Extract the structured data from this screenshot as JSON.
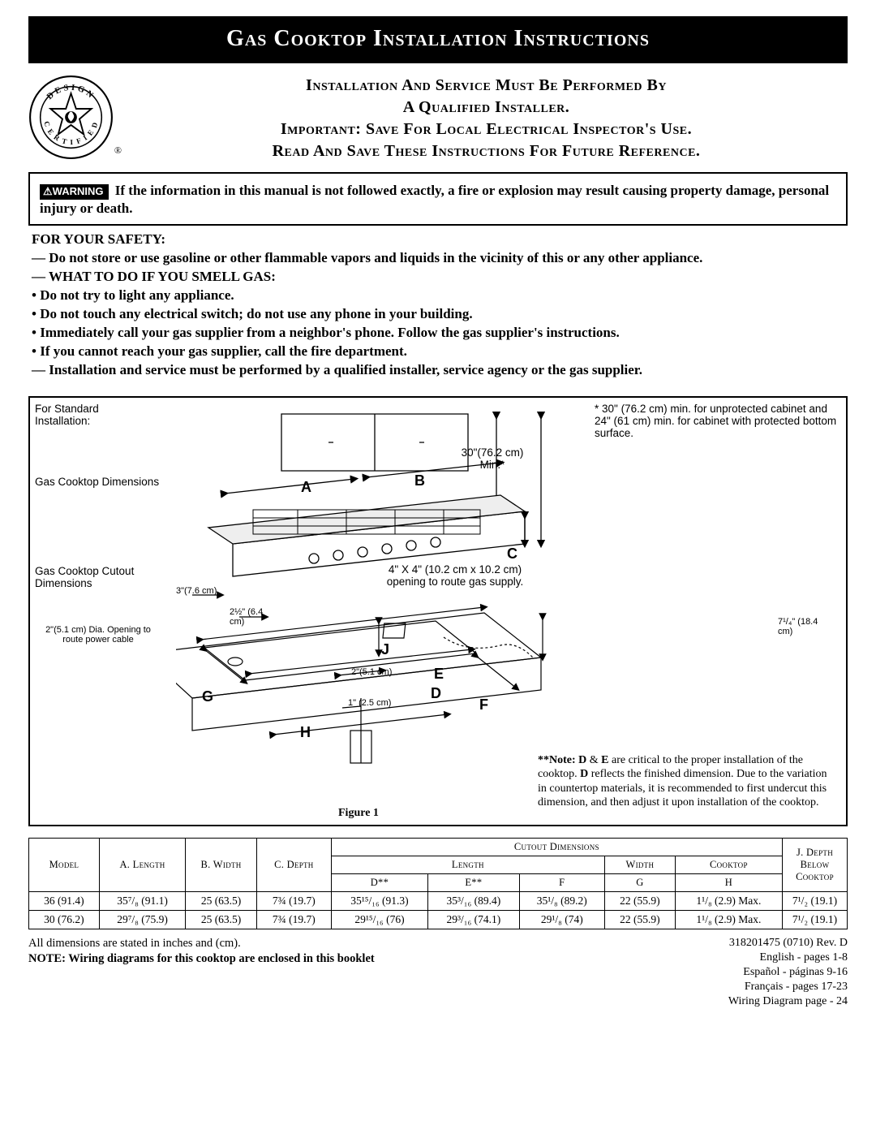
{
  "title": "Gas Cooktop Installation Instructions",
  "header_lines": [
    "Installation And Service Must Be Performed By",
    "A Qualified Installer.",
    "Important: Save For Local Electrical Inspector's Use.",
    "Read And Save These Instructions For Future Reference."
  ],
  "seal": {
    "top_text": "DESIGN",
    "bottom_text": "CERTIFIED",
    "icon": "star-flame"
  },
  "warning_label": "WARNING",
  "warning_text": "If the information in this manual is not followed exactly, a fire or explosion may result causing property damage, personal injury or death.",
  "safety_heading": "FOR YOUR SAFETY:",
  "safety_items": [
    {
      "style": "dash",
      "text": "Do not store or use gasoline or other flammable vapors and liquids in the vicinity of this or any other appliance."
    },
    {
      "style": "dash",
      "text": "WHAT TO DO IF YOU SMELL GAS:"
    },
    {
      "style": "bull",
      "text": "Do not try to light any appliance."
    },
    {
      "style": "bull",
      "text": "Do not touch any electrical switch; do not use any phone in your building."
    },
    {
      "style": "bull",
      "text": "Immediately call your gas supplier from a neighbor's phone.  Follow the gas supplier's instructions."
    },
    {
      "style": "bull",
      "text": "If you cannot reach your gas supplier, call the fire department."
    },
    {
      "style": "dash",
      "text": "Installation and service must be performed by a qualified installer, service agency or the gas supplier."
    }
  ],
  "figure": {
    "caption": "Figure 1",
    "labels": {
      "for_standard": "For Standard Installation:",
      "cooktop_dims": "Gas Cooktop Dimensions",
      "cutout_dims": "Gas Cooktop Cutout Dimensions",
      "power_opening": "2\"(5.1 cm) Dia. Opening to route power cable",
      "min_clear": "30\"(76.2 cm) Min.*",
      "min_note": "* 30\" (76.2 cm) min. for unprotected cabinet and 24\" (61 cm) min. for cabinet with protected bottom surface.",
      "gas_opening": "4\" X 4\" (10.2 cm x 10.2 cm) opening to route gas supply.",
      "gap_3": "3\"(7.6 cm)",
      "gap_25": "2½\" (6.4 cm)",
      "gap_2": "2\"(5.1 cm)",
      "gap_1": "1\" (2.5 cm)",
      "gap_71": "7¹/₄\" (18.4 cm)",
      "letters": [
        "A",
        "B",
        "C",
        "D",
        "E",
        "F",
        "G",
        "H",
        "J"
      ]
    },
    "note_de": "**Note: D & E are critical to the proper installation of the cooktop. D reflects the finished dimension. Due to the variation in countertop materials, it is recommended to first undercut this dimension, and then adjust it upon installation of the cooktop."
  },
  "table": {
    "group_headers": {
      "model": "Model",
      "a": "A. Length",
      "b": "B. Width",
      "c": "C. Depth",
      "cutout": "Cutout  Dimensions",
      "j": "J. Depth Below Cooktop"
    },
    "sub_headers": {
      "length": "Length",
      "width": "Width",
      "d": "D**",
      "e": "E**",
      "f": "F",
      "g": "G",
      "h": "H"
    },
    "rows": [
      {
        "model": "36  (91.4)",
        "a": "35⁷/₈ (91.1)",
        "b": "25 (63.5)",
        "c": "7¾ (19.7)",
        "d": "35¹⁵/₁₆ (91.3)",
        "e": "35³/₁₆ (89.4)",
        "f": "35¹/₈ (89.2)",
        "g": "22 (55.9)",
        "h": "1¹/₈ (2.9) Max.",
        "j": "7¹/₂ (19.1)"
      },
      {
        "model": "30  (76.2)",
        "a": "29⁷/₈ (75.9)",
        "b": "25 (63.5)",
        "c": "7¾ (19.7)",
        "d": "29¹⁵/₁₆ (76)",
        "e": "29³/₁₆ (74.1)",
        "f": "29¹/₈ (74)",
        "g": "22 (55.9)",
        "h": "1¹/₈ (2.9) Max.",
        "j": "7¹/₂ (19.1)"
      }
    ]
  },
  "footer": {
    "dim_note": "All dimensions are stated in inches and (cm).",
    "wiring_note": "NOTE: Wiring diagrams for this cooktop are enclosed in this booklet",
    "rev": "318201475 (0710) Rev. D",
    "langs": [
      "English - pages 1-8",
      "Español - páginas 9-16",
      "Français - pages 17-23",
      "Wiring Diagram page - 24"
    ]
  },
  "colors": {
    "ink": "#000000",
    "paper": "#ffffff"
  }
}
